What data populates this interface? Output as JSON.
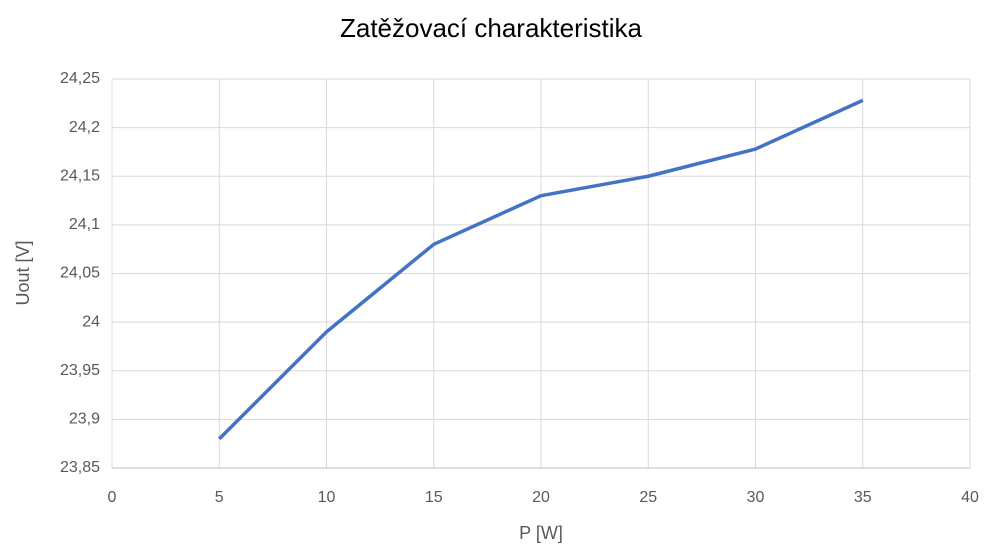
{
  "chart_data": {
    "type": "line",
    "title": "Zatěžovací charakteristika",
    "xlabel": "P [W]",
    "ylabel": "Uout [V]",
    "x": [
      5,
      10,
      15,
      20,
      25,
      30,
      35
    ],
    "series": [
      {
        "name": "Uout",
        "color": "#4472c4",
        "values": [
          23.88,
          23.99,
          24.08,
          24.13,
          24.15,
          24.178,
          24.228
        ]
      }
    ],
    "xlim": [
      0,
      40
    ],
    "xticks": [
      0,
      5,
      10,
      15,
      20,
      25,
      30,
      35,
      40
    ],
    "ylim": [
      23.85,
      24.25
    ],
    "yticks": [
      {
        "value": 23.85,
        "label": "23,85"
      },
      {
        "value": 23.9,
        "label": "23,9"
      },
      {
        "value": 23.95,
        "label": "23,95"
      },
      24,
      {
        "value": 24.05,
        "label": "24,05"
      },
      {
        "value": 24.1,
        "label": "24,1"
      },
      {
        "value": 24.15,
        "label": "24,15"
      },
      {
        "value": 24.2,
        "label": "24,2"
      },
      {
        "value": 24.25,
        "label": "24,25"
      }
    ],
    "grid": true
  }
}
